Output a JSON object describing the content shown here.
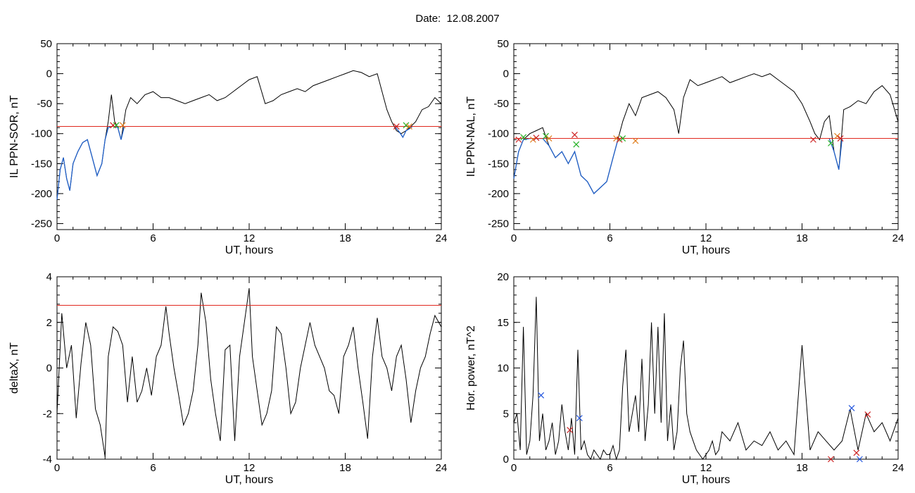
{
  "page_title": "Date:  12.08.2007",
  "colors": {
    "axis": "#000000",
    "trace": "#000000",
    "event_trace": "#1f5fc8",
    "threshold": "#e0281e",
    "marker_red": "#cc2020",
    "marker_green": "#22b022",
    "marker_blue": "#2255dd",
    "marker_orange": "#e08020"
  },
  "chart_data": [
    {
      "type": "line",
      "ylabel": "IL PPN-SOR, nT",
      "xlabel": "UT, hours",
      "xlim": [
        0,
        24
      ],
      "ylim": [
        -260,
        50
      ],
      "xticks": [
        0,
        6,
        12,
        18,
        24
      ],
      "yticks": [
        50,
        0,
        -50,
        -100,
        -150,
        -200,
        -250
      ],
      "threshold": -88,
      "series": [
        {
          "values_x": [
            0,
            0.2,
            0.4,
            0.6,
            0.8,
            1.0,
            1.3,
            1.6,
            1.9,
            2.2,
            2.5,
            2.8,
            3.0,
            3.2,
            3.4,
            3.6,
            3.8,
            4.0,
            4.3,
            4.6,
            5.0,
            5.5,
            6.0,
            6.5,
            7.0,
            7.5,
            8.0,
            8.5,
            9.0,
            9.5,
            10.0,
            10.5,
            11.0,
            11.5,
            12.0,
            12.5,
            13.0,
            13.5,
            14.0,
            14.5,
            15.0,
            15.5,
            16.0,
            16.5,
            17.0,
            17.5,
            18.0,
            18.5,
            19.0,
            19.5,
            20.0,
            20.3,
            20.6,
            20.9,
            21.2,
            21.5,
            21.8,
            22.1,
            22.4,
            22.8,
            23.2,
            23.6,
            24.0
          ],
          "values_y": [
            -210,
            -160,
            -140,
            -175,
            -195,
            -150,
            -130,
            -115,
            -110,
            -140,
            -170,
            -150,
            -110,
            -80,
            -35,
            -80,
            -90,
            -110,
            -60,
            -40,
            -50,
            -35,
            -30,
            -40,
            -40,
            -45,
            -50,
            -45,
            -40,
            -35,
            -45,
            -40,
            -30,
            -20,
            -10,
            -5,
            -50,
            -45,
            -35,
            -30,
            -25,
            -30,
            -20,
            -15,
            -10,
            -5,
            0,
            5,
            2,
            -5,
            0,
            -30,
            -60,
            -80,
            -95,
            -100,
            -95,
            -88,
            -80,
            -60,
            -55,
            -40,
            -50
          ]
        },
        {
          "values_x": [
            0,
            0.2,
            0.4,
            0.6,
            0.8,
            1.0,
            1.3,
            1.6,
            1.9,
            2.2,
            2.5,
            2.8,
            3.0,
            3.2,
            3.4
          ],
          "values_y": [
            -210,
            -160,
            -140,
            -175,
            -195,
            -150,
            -130,
            -115,
            -110,
            -140,
            -170,
            -150,
            -110,
            -90,
            -88
          ]
        },
        {
          "values_x": [
            3.6,
            3.8,
            4.0,
            4.2
          ],
          "values_y": [
            -88,
            -90,
            -110,
            -88
          ]
        },
        {
          "values_x": [
            21.1,
            21.4,
            21.6,
            21.8,
            22.0,
            22.2
          ],
          "values_y": [
            -88,
            -98,
            -106,
            -95,
            -92,
            -88
          ]
        }
      ],
      "markers_x": [
        3.5,
        3.7,
        4.1,
        21.2,
        21.8,
        22.0
      ],
      "markers_y": [
        -86,
        -86,
        -86,
        -88,
        -86,
        -88
      ]
    },
    {
      "type": "line",
      "ylabel": "IL PPN-NAL, nT",
      "xlabel": "UT, hours",
      "xlim": [
        0,
        24
      ],
      "ylim": [
        -260,
        50
      ],
      "xticks": [
        0,
        6,
        12,
        18,
        24
      ],
      "yticks": [
        50,
        0,
        -50,
        -100,
        -150,
        -200,
        -250
      ],
      "threshold": -108,
      "series": [
        {
          "values_x": [
            0,
            0.3,
            0.6,
            1.0,
            1.4,
            1.8,
            2.2,
            2.6,
            3.0,
            3.4,
            3.8,
            4.2,
            4.6,
            5.0,
            5.4,
            5.8,
            6.2,
            6.5,
            6.8,
            7.2,
            7.6,
            8.0,
            8.5,
            9.0,
            9.5,
            10.0,
            10.3,
            10.6,
            11.0,
            11.5,
            12.0,
            12.5,
            13.0,
            13.5,
            14.0,
            14.5,
            15.0,
            15.5,
            16.0,
            16.5,
            17.0,
            17.5,
            18.0,
            18.5,
            18.8,
            19.1,
            19.4,
            19.7,
            20.0,
            20.3,
            20.6,
            21.0,
            21.5,
            22.0,
            22.5,
            23.0,
            23.5,
            24.0
          ],
          "values_y": [
            -175,
            -130,
            -110,
            -100,
            -95,
            -90,
            -120,
            -140,
            -130,
            -150,
            -130,
            -170,
            -180,
            -200,
            -190,
            -180,
            -140,
            -110,
            -80,
            -50,
            -70,
            -40,
            -35,
            -30,
            -40,
            -60,
            -100,
            -40,
            -10,
            -20,
            -15,
            -10,
            -5,
            -15,
            -10,
            -5,
            0,
            -5,
            0,
            -10,
            -20,
            -30,
            -50,
            -80,
            -100,
            -110,
            -80,
            -70,
            -130,
            -160,
            -60,
            -55,
            -45,
            -50,
            -30,
            -20,
            -35,
            -80
          ]
        },
        {
          "values_x": [
            0,
            0.3,
            0.6,
            1.0,
            1.4,
            1.8,
            2.2,
            2.6,
            3.0,
            3.4,
            3.8,
            4.2,
            4.6,
            5.0,
            5.4,
            5.8,
            6.2,
            6.5
          ],
          "values_y": [
            -175,
            -130,
            -110,
            -108,
            -108,
            -108,
            -120,
            -140,
            -130,
            -150,
            -130,
            -170,
            -180,
            -200,
            -190,
            -180,
            -140,
            -110
          ]
        },
        {
          "values_x": [
            19.7,
            20.0,
            20.3,
            20.5
          ],
          "values_y": [
            -108,
            -130,
            -160,
            -108
          ]
        }
      ],
      "markers_x": [
        0.3,
        0.6,
        1.2,
        1.4,
        2.0,
        2.2,
        3.8,
        3.9,
        6.4,
        6.6,
        6.8,
        7.6,
        18.7,
        19.8,
        20.2,
        20.4
      ],
      "markers_y": [
        -110,
        -106,
        -110,
        -107,
        -104,
        -108,
        -102,
        -118,
        -108,
        -110,
        -108,
        -112,
        -110,
        -116,
        -104,
        -108
      ]
    },
    {
      "type": "line",
      "ylabel": "deltaX, nT",
      "xlabel": "UT, hours",
      "xlim": [
        0,
        24
      ],
      "ylim": [
        -4,
        4
      ],
      "xticks": [
        0,
        6,
        12,
        18,
        24
      ],
      "yticks": [
        4,
        2,
        0,
        -2,
        -4
      ],
      "threshold": 2.75,
      "series": [
        {
          "values_x": [
            0,
            0.3,
            0.6,
            0.9,
            1.2,
            1.5,
            1.8,
            2.1,
            2.4,
            2.7,
            3.0,
            3.2,
            3.5,
            3.8,
            4.1,
            4.4,
            4.7,
            5.0,
            5.3,
            5.6,
            5.9,
            6.2,
            6.5,
            6.8,
            7.0,
            7.3,
            7.6,
            7.9,
            8.2,
            8.5,
            8.8,
            9.0,
            9.3,
            9.6,
            9.9,
            10.2,
            10.5,
            10.8,
            11.1,
            11.4,
            11.7,
            12.0,
            12.2,
            12.5,
            12.8,
            13.1,
            13.4,
            13.7,
            14.0,
            14.3,
            14.6,
            14.9,
            15.2,
            15.5,
            15.8,
            16.1,
            16.4,
            16.7,
            17.0,
            17.3,
            17.6,
            17.9,
            18.2,
            18.5,
            18.8,
            19.1,
            19.4,
            19.7,
            20.0,
            20.3,
            20.6,
            20.9,
            21.2,
            21.5,
            21.8,
            22.1,
            22.4,
            22.7,
            23.0,
            23.3,
            23.6,
            24.0
          ],
          "values_y": [
            -2.0,
            2.4,
            0.0,
            1.0,
            -2.2,
            0.2,
            2.0,
            1.0,
            -1.8,
            -2.5,
            -3.9,
            0.5,
            1.8,
            1.6,
            1.0,
            -1.5,
            0.5,
            -1.5,
            -1.0,
            0.0,
            -1.2,
            0.5,
            1.0,
            2.7,
            1.5,
            0.0,
            -1.2,
            -2.5,
            -2.0,
            -1.0,
            1.0,
            3.3,
            2.0,
            -0.5,
            -2.0,
            -3.2,
            0.8,
            1.0,
            -3.2,
            0.5,
            2.0,
            3.5,
            0.5,
            -1.0,
            -2.5,
            -2.0,
            -1.0,
            1.8,
            1.5,
            0.0,
            -2.0,
            -1.5,
            0.0,
            1.0,
            2.0,
            1.0,
            0.5,
            0.0,
            -1.0,
            -1.2,
            -2.0,
            0.5,
            1.0,
            1.8,
            0.0,
            -1.5,
            -3.1,
            0.5,
            2.2,
            0.5,
            0.0,
            -1.0,
            0.5,
            1.0,
            -0.5,
            -2.4,
            -1.0,
            0.0,
            0.5,
            1.5,
            2.3,
            1.8
          ]
        }
      ]
    },
    {
      "type": "line",
      "ylabel": "Hor. power, nT^2",
      "xlabel": "UT, hours",
      "xlim": [
        0,
        24
      ],
      "ylim": [
        0,
        20
      ],
      "xticks": [
        0,
        6,
        12,
        18,
        24
      ],
      "yticks": [
        20,
        15,
        10,
        5,
        0
      ],
      "series": [
        {
          "values_x": [
            0,
            0.2,
            0.4,
            0.6,
            0.8,
            1.0,
            1.2,
            1.4,
            1.6,
            1.8,
            2.0,
            2.2,
            2.4,
            2.6,
            2.8,
            3.0,
            3.2,
            3.4,
            3.6,
            3.8,
            4.0,
            4.2,
            4.4,
            4.6,
            4.8,
            5.0,
            5.2,
            5.4,
            5.6,
            5.8,
            6.0,
            6.2,
            6.4,
            6.6,
            6.8,
            7.0,
            7.2,
            7.4,
            7.6,
            7.8,
            8.0,
            8.2,
            8.4,
            8.6,
            8.8,
            9.0,
            9.2,
            9.4,
            9.6,
            9.8,
            10.0,
            10.2,
            10.4,
            10.6,
            10.8,
            11.0,
            11.2,
            11.4,
            11.6,
            11.8,
            12.0,
            12.2,
            12.4,
            12.6,
            12.8,
            13.0,
            13.5,
            14.0,
            14.5,
            15.0,
            15.5,
            16.0,
            16.5,
            17.0,
            17.5,
            18.0,
            18.5,
            19.0,
            19.5,
            20.0,
            20.5,
            21.0,
            21.5,
            22.0,
            22.5,
            23.0,
            23.5,
            24.0
          ],
          "values_y": [
            4.0,
            5.0,
            1.0,
            14.5,
            0.5,
            2.0,
            7.0,
            17.8,
            2.0,
            5.0,
            1.0,
            2.0,
            4.0,
            0.5,
            2.0,
            6.0,
            3.0,
            1.0,
            4.5,
            0.5,
            12.0,
            1.0,
            2.0,
            0.5,
            0.0,
            1.0,
            0.5,
            0.0,
            1.0,
            0.5,
            0.5,
            1.5,
            0.0,
            1.0,
            8.0,
            12.0,
            3.0,
            5.0,
            7.0,
            3.0,
            11.0,
            2.0,
            6.0,
            15.0,
            5.0,
            14.5,
            4.0,
            16.0,
            2.0,
            6.0,
            1.0,
            3.0,
            10.0,
            13.0,
            5.0,
            3.0,
            2.0,
            1.0,
            0.5,
            0.0,
            0.5,
            1.0,
            2.0,
            0.5,
            1.0,
            3.0,
            2.0,
            4.0,
            1.0,
            2.0,
            1.5,
            3.0,
            1.0,
            2.0,
            0.5,
            12.5,
            1.0,
            3.0,
            2.0,
            1.0,
            2.0,
            5.5,
            1.0,
            5.0,
            3.0,
            4.0,
            2.0,
            4.5
          ]
        }
      ],
      "markers_x": [
        1.7,
        3.5,
        4.1,
        19.8,
        21.1,
        21.4,
        21.6,
        22.1
      ],
      "markers_y": [
        7.0,
        3.2,
        4.5,
        0.0,
        5.6,
        0.7,
        0.0,
        4.9
      ]
    }
  ]
}
